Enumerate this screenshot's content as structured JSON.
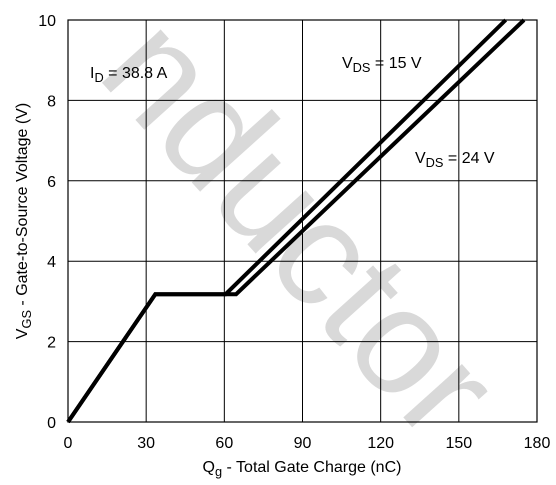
{
  "chart_data": {
    "type": "line",
    "xlabel": {
      "main": "Q",
      "sub": "g",
      "rest": "  -  Total Gate Charge (nC)"
    },
    "ylabel": {
      "main": "V",
      "sub": "GS",
      "rest": "  -  Gate-to-Source Voltage (V)"
    },
    "xlim": [
      0,
      180
    ],
    "ylim": [
      0,
      10
    ],
    "xticks": [
      0,
      30,
      60,
      90,
      120,
      150,
      180
    ],
    "yticks": [
      0,
      2,
      4,
      6,
      8,
      10
    ],
    "grid": true,
    "series": [
      {
        "name": "VDS = 15 V",
        "x": [
          0,
          33.5,
          60.5,
          168
        ],
        "y": [
          0,
          3.18,
          3.18,
          10
        ]
      },
      {
        "name": "VDS = 24 V",
        "x": [
          0,
          33.5,
          64.5,
          175
        ],
        "y": [
          0,
          3.18,
          3.18,
          10
        ]
      }
    ],
    "annotations": [
      {
        "id": "id-label",
        "main": "I",
        "sub": "D",
        "rest": " = 38.8 A"
      },
      {
        "id": "vds15-label",
        "main": "V",
        "sub": "DS",
        "rest": " = 15 V"
      },
      {
        "id": "vds24-label",
        "main": "V",
        "sub": "DS",
        "rest": " = 24 V"
      }
    ],
    "watermark": "nductor"
  }
}
